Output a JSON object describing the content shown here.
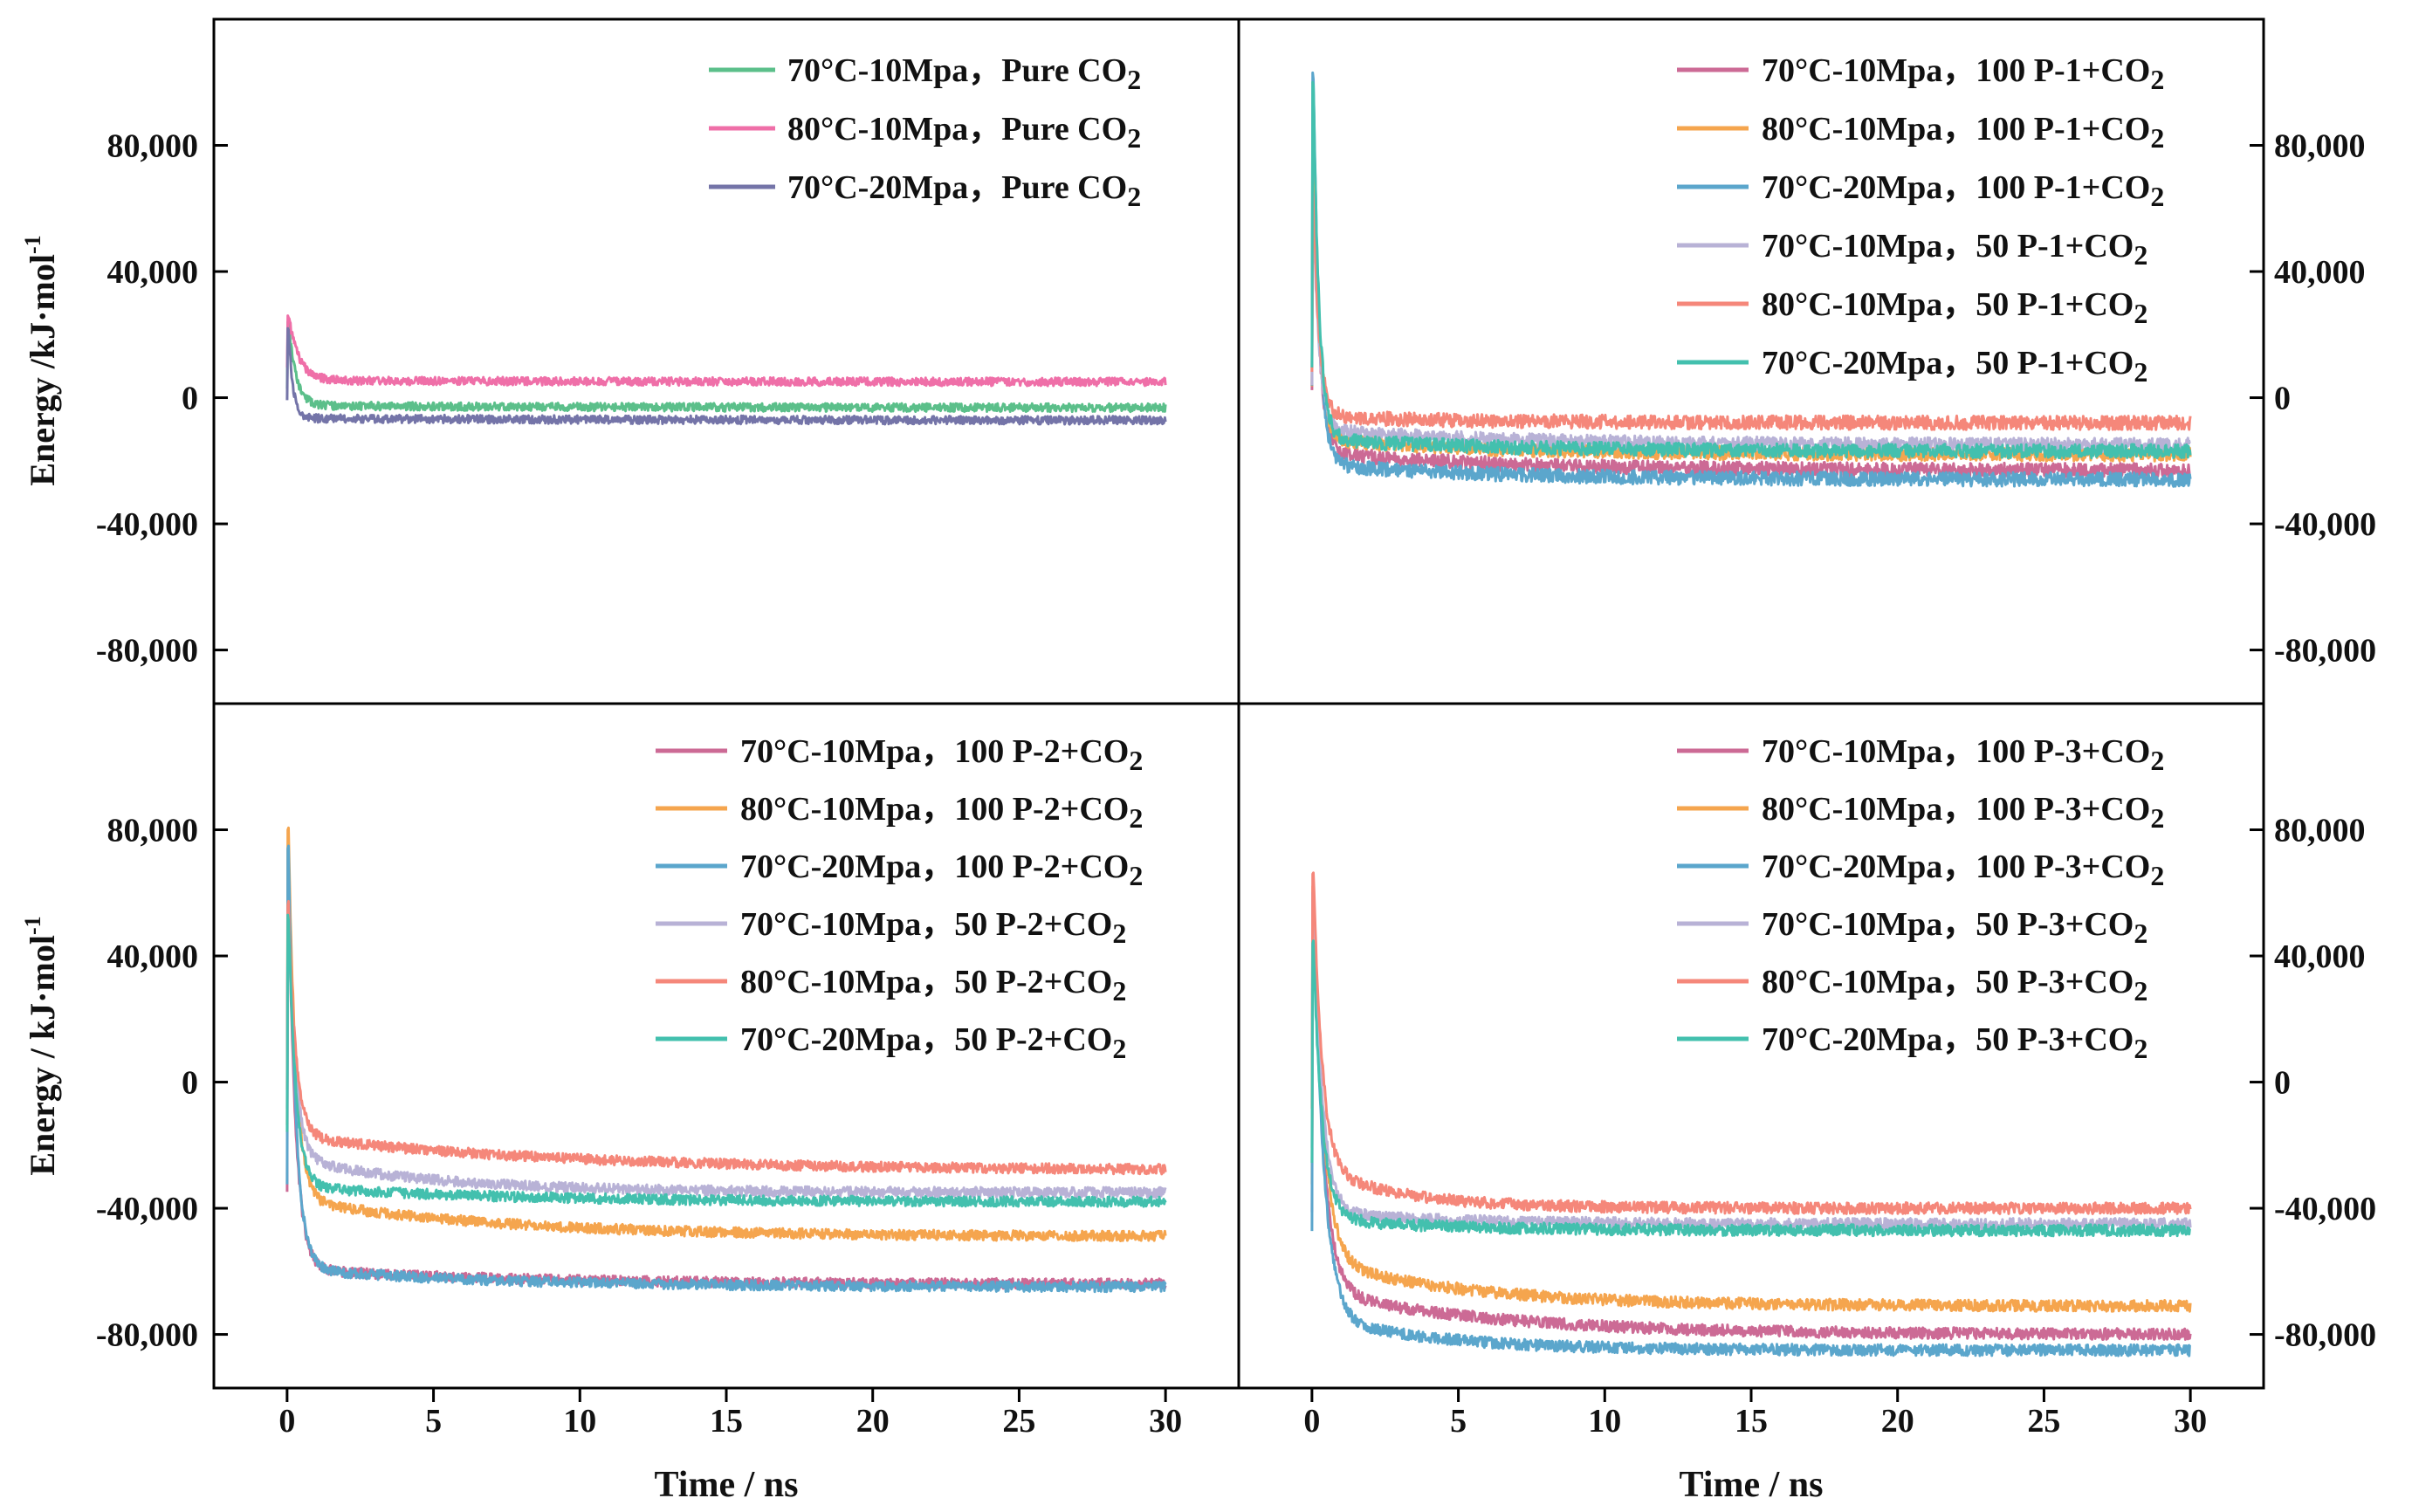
{
  "chart_data": [
    {
      "panel": "top-left",
      "type": "line",
      "xlabel": "",
      "ylabel": "Energy /kJ·mol",
      "ylabel_sup": "-1",
      "xlim": [
        -2.5,
        32.5
      ],
      "ylim": [
        -97000,
        120000
      ],
      "yticks": [
        80000,
        40000,
        0,
        -40000,
        -80000
      ],
      "ytick_labels": [
        "80,000",
        "40,000",
        "0",
        "-40,000",
        "-80,000"
      ],
      "y_axis_side": "left",
      "legend_position": "top-right",
      "series": [
        {
          "name": "70°C-10Mpa，Pure CO",
          "sub": "2",
          "color": "#5bbf8a",
          "peak": 24000,
          "peak_t": 0.05,
          "plateau_start": -2500,
          "plateau_end": -3200,
          "tau_fast": 0.25,
          "tau_slow": 10,
          "noise": 1300,
          "seed": 11
        },
        {
          "name": "80°C-10Mpa，Pure CO",
          "sub": "2",
          "color": "#ef6fa8",
          "peak": 26000,
          "peak_t": 0.05,
          "plateau_start": 5500,
          "plateau_end": 5000,
          "tau_fast": 0.35,
          "tau_slow": 10,
          "noise": 1300,
          "seed": 12
        },
        {
          "name": "70°C-20Mpa，Pure CO",
          "sub": "2",
          "color": "#7474a8",
          "peak": 22000,
          "peak_t": 0.05,
          "plateau_start": -6500,
          "plateau_end": -7200,
          "tau_fast": 0.15,
          "tau_slow": 10,
          "noise": 1300,
          "seed": 13
        }
      ]
    },
    {
      "panel": "top-right",
      "type": "line",
      "xlabel": "",
      "ylabel": "",
      "xlim": [
        -2.5,
        32.5
      ],
      "ylim": [
        -97000,
        120000
      ],
      "yticks": [
        80000,
        40000,
        0,
        -40000,
        -80000
      ],
      "ytick_labels": [
        "80,000",
        "40,000",
        "0",
        "-40,000",
        "-80,000"
      ],
      "y_axis_side": "right",
      "legend_position": "top-right",
      "series": [
        {
          "name": "70°C-10Mpa，100 P-1+CO",
          "sub": "2",
          "color": "#cc6a95",
          "peak": 80000,
          "peak_t": 0.05,
          "plateau_start": -17000,
          "plateau_end": -23000,
          "tau_fast": 0.2,
          "tau_slow": 6,
          "noise": 2200,
          "seed": 21
        },
        {
          "name": "80°C-10Mpa，100 P-1+CO",
          "sub": "2",
          "color": "#f5a54e",
          "peak": 70000,
          "peak_t": 0.05,
          "plateau_start": -13000,
          "plateau_end": -18000,
          "tau_fast": 0.2,
          "tau_slow": 6,
          "noise": 2200,
          "seed": 22
        },
        {
          "name": "70°C-20Mpa，100 P-1+CO",
          "sub": "2",
          "color": "#5ba6cc",
          "peak": 103000,
          "peak_t": 0.05,
          "plateau_start": -21000,
          "plateau_end": -26000,
          "tau_fast": 0.2,
          "tau_slow": 6,
          "noise": 2200,
          "seed": 23
        },
        {
          "name": "70°C-10Mpa，50 P-1+CO",
          "sub": "2",
          "color": "#b8b2d6",
          "peak": 60000,
          "peak_t": 0.05,
          "plateau_start": -10000,
          "plateau_end": -15000,
          "tau_fast": 0.2,
          "tau_slow": 6,
          "noise": 2200,
          "seed": 24
        },
        {
          "name": "80°C-10Mpa，50 P-1+CO",
          "sub": "2",
          "color": "#f5877a",
          "peak": 65000,
          "peak_t": 0.05,
          "plateau_start": -6000,
          "plateau_end": -8000,
          "tau_fast": 0.2,
          "tau_slow": 6,
          "noise": 2200,
          "seed": 25
        },
        {
          "name": "70°C-20Mpa，50 P-1+CO",
          "sub": "2",
          "color": "#43c0ae",
          "peak": 100000,
          "peak_t": 0.05,
          "plateau_start": -13000,
          "plateau_end": -17000,
          "tau_fast": 0.2,
          "tau_slow": 6,
          "noise": 2200,
          "seed": 26
        }
      ]
    },
    {
      "panel": "bottom-left",
      "type": "line",
      "xlabel": "Time / ns",
      "ylabel": "Energy / kJ·mol",
      "ylabel_sup": "-1",
      "xlim": [
        -2.5,
        32.5
      ],
      "xticks": [
        0,
        5,
        10,
        15,
        20,
        25,
        30
      ],
      "ylim": [
        -97000,
        120000
      ],
      "yticks": [
        80000,
        40000,
        0,
        -40000,
        -80000
      ],
      "ytick_labels": [
        "80,000",
        "40,000",
        "0",
        "-40,000",
        "-80,000"
      ],
      "y_axis_side": "left",
      "legend_position": "top-right",
      "series": [
        {
          "name": "70°C-10Mpa，100 P-2+CO",
          "sub": "2",
          "color": "#cc6a95",
          "peak": 62000,
          "peak_t": 0.05,
          "plateau_start": -59000,
          "plateau_end": -64000,
          "tau_fast": 0.25,
          "tau_slow": 7,
          "noise": 1600,
          "seed": 31
        },
        {
          "name": "80°C-10Mpa，100 P-2+CO",
          "sub": "2",
          "color": "#f5a54e",
          "peak": 80000,
          "peak_t": 0.05,
          "plateau_start": -37000,
          "plateau_end": -49000,
          "tau_fast": 0.25,
          "tau_slow": 7,
          "noise": 1600,
          "seed": 32
        },
        {
          "name": "70°C-20Mpa，100 P-2+CO",
          "sub": "2",
          "color": "#5ba6cc",
          "peak": 74000,
          "peak_t": 0.05,
          "plateau_start": -59000,
          "plateau_end": -65000,
          "tau_fast": 0.25,
          "tau_slow": 7,
          "noise": 1600,
          "seed": 33
        },
        {
          "name": "70°C-10Mpa，50 P-2+CO",
          "sub": "2",
          "color": "#b8b2d6",
          "peak": 54000,
          "peak_t": 0.05,
          "plateau_start": -24000,
          "plateau_end": -35000,
          "tau_fast": 0.25,
          "tau_slow": 5,
          "noise": 1600,
          "seed": 34
        },
        {
          "name": "80°C-10Mpa，50 P-2+CO",
          "sub": "2",
          "color": "#f5877a",
          "peak": 56000,
          "peak_t": 0.05,
          "plateau_start": -17000,
          "plateau_end": -28000,
          "tau_fast": 0.25,
          "tau_slow": 9,
          "noise": 1600,
          "seed": 35
        },
        {
          "name": "70°C-20Mpa，50 P-2+CO",
          "sub": "2",
          "color": "#43c0ae",
          "peak": 53000,
          "peak_t": 0.05,
          "plateau_start": -33000,
          "plateau_end": -38000,
          "tau_fast": 0.25,
          "tau_slow": 7,
          "noise": 1600,
          "seed": 36
        }
      ]
    },
    {
      "panel": "bottom-right",
      "type": "line",
      "xlabel": "Time / ns",
      "ylabel": "",
      "xlim": [
        -2.5,
        32.5
      ],
      "xticks": [
        0,
        5,
        10,
        15,
        20,
        25,
        30
      ],
      "ylim": [
        -97000,
        120000
      ],
      "yticks": [
        80000,
        40000,
        0,
        -40000,
        -80000
      ],
      "ytick_labels": [
        "80,000",
        "40,000",
        "0",
        "-40,000",
        "-80,000"
      ],
      "y_axis_side": "right",
      "legend_position": "top-right",
      "series": [
        {
          "name": "70°C-10Mpa，100 P-3+CO",
          "sub": "2",
          "color": "#cc6a95",
          "peak": 58000,
          "peak_t": 0.05,
          "plateau_start": -66000,
          "plateau_end": -80000,
          "tau_fast": 0.35,
          "tau_slow": 6,
          "noise": 1800,
          "seed": 41
        },
        {
          "name": "80°C-10Mpa，100 P-3+CO",
          "sub": "2",
          "color": "#f5a54e",
          "peak": 62000,
          "peak_t": 0.05,
          "plateau_start": -56000,
          "plateau_end": -71000,
          "tau_fast": 0.35,
          "tau_slow": 5,
          "noise": 1800,
          "seed": 42
        },
        {
          "name": "70°C-20Mpa，100 P-3+CO",
          "sub": "2",
          "color": "#5ba6cc",
          "peak": 60000,
          "peak_t": 0.05,
          "plateau_start": -74000,
          "plateau_end": -85000,
          "tau_fast": 0.35,
          "tau_slow": 4,
          "noise": 1800,
          "seed": 43
        },
        {
          "name": "70°C-10Mpa，50 P-3+CO",
          "sub": "2",
          "color": "#b8b2d6",
          "peak": 60000,
          "peak_t": 0.05,
          "plateau_start": -41000,
          "plateau_end": -45000,
          "tau_fast": 0.3,
          "tau_slow": 4,
          "noise": 1800,
          "seed": 44
        },
        {
          "name": "80°C-10Mpa，50 P-3+CO",
          "sub": "2",
          "color": "#f5877a",
          "peak": 66000,
          "peak_t": 0.05,
          "plateau_start": -27000,
          "plateau_end": -40000,
          "tau_fast": 0.3,
          "tau_slow": 3,
          "noise": 1800,
          "seed": 45
        },
        {
          "name": "70°C-20Mpa，50 P-3+CO",
          "sub": "2",
          "color": "#43c0ae",
          "peak": 44000,
          "peak_t": 0.05,
          "plateau_start": -43000,
          "plateau_end": -47000,
          "tau_fast": 0.3,
          "tau_slow": 4,
          "noise": 1800,
          "seed": 46
        }
      ]
    }
  ]
}
